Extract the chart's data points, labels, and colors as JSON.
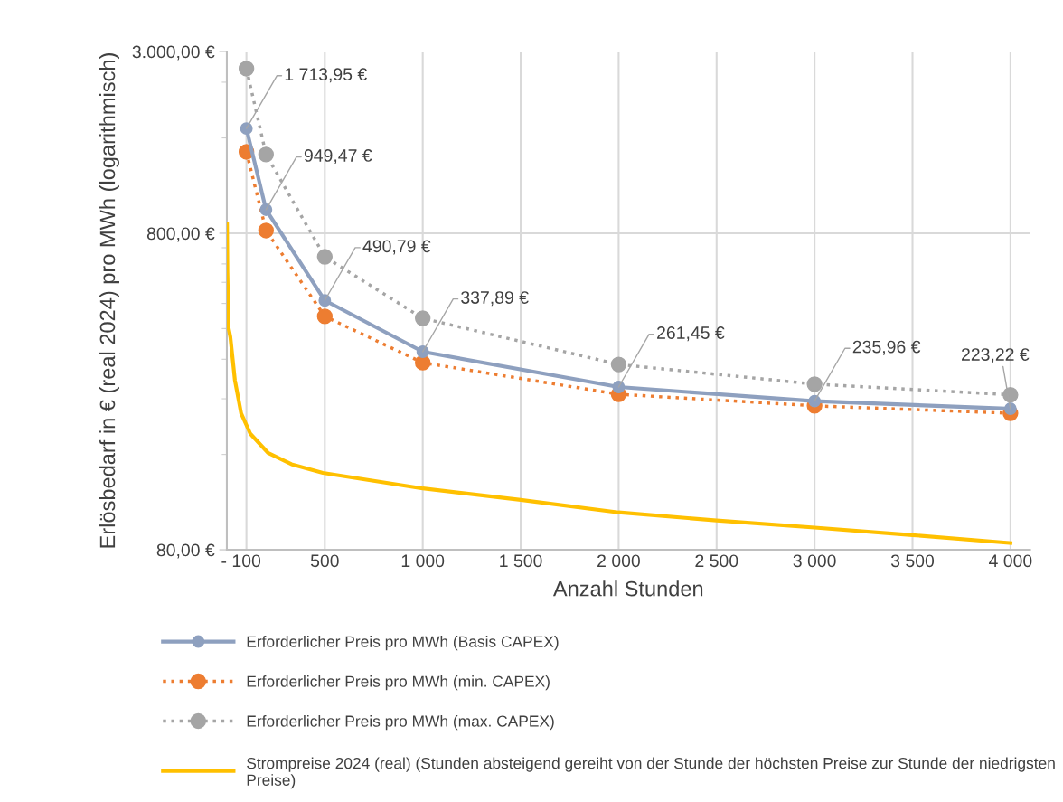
{
  "chart_data": {
    "type": "line",
    "xlabel": "Anzahl Stunden",
    "ylabel": "Erlösbedarf in € (real 2024) pro MWh (logarithmisch)",
    "log": "y",
    "grid": true,
    "legend": "bottom",
    "xlim": [
      0,
      4100
    ],
    "xticks": [
      {
        "value": 0,
        "label": "-"
      },
      100,
      500,
      {
        "value": 1000,
        "label": "1 000"
      },
      {
        "value": 1500,
        "label": "1 500"
      },
      {
        "value": 2000,
        "label": "2 000"
      },
      {
        "value": 2500,
        "label": "2 500"
      },
      {
        "value": 3000,
        "label": "3 000"
      },
      {
        "value": 3500,
        "label": "3 500"
      },
      {
        "value": 4000,
        "label": "4 000"
      }
    ],
    "ylim": [
      80,
      3000
    ],
    "yticks": [
      {
        "value": 80,
        "label": "80,00 €"
      },
      {
        "value": 160,
        "label": null
      },
      {
        "value": 240,
        "label": null
      },
      {
        "value": 320,
        "label": null
      },
      {
        "value": 400,
        "label": null
      },
      {
        "value": 480,
        "label": null
      },
      {
        "value": 560,
        "label": null
      },
      {
        "value": 640,
        "label": null
      },
      {
        "value": 720,
        "label": null
      },
      {
        "value": 800,
        "label": "800,00 €"
      },
      {
        "value": 1600,
        "label": null
      },
      {
        "value": 2400,
        "label": null
      },
      {
        "value": 3000,
        "label": "3.000,00 €"
      }
    ],
    "series": [
      {
        "name": "Erforderlicher Preis pro MWh (Basis CAPEX)",
        "color": "#8ea0bf",
        "marker": "circle",
        "line_style": "solid",
        "x": [
          100,
          200,
          500,
          1000,
          2000,
          3000,
          4000
        ],
        "values": [
          1713.95,
          949.47,
          490.79,
          337.89,
          261.45,
          235.96,
          223.22
        ],
        "value_labels": [
          "1 713,95 €",
          "949,47 €",
          "490,79 €",
          "337,89 €",
          "261,45 €",
          "235,96 €",
          "223,22 €"
        ]
      },
      {
        "name": "Erforderlicher Preis pro MWh (min. CAPEX)",
        "color": "#ed7d31",
        "marker": "circle",
        "line_style": "dotted",
        "x": [
          100,
          200,
          500,
          1000,
          2000,
          3000,
          4000
        ],
        "values": [
          1446,
          816,
          437,
          312,
          248,
          228,
          216
        ]
      },
      {
        "name": "Erforderlicher Preis pro MWh (max. CAPEX)",
        "color": "#a5a5a5",
        "marker": "circle",
        "line_style": "dotted",
        "x": [
          100,
          200,
          500,
          1000,
          2000,
          3000,
          4000
        ],
        "values": [
          2649,
          1419,
          674,
          431,
          308,
          267,
          247
        ]
      },
      {
        "name": "Strompreise 2024 (real) (Stunden absteigend gereiht von der Stunde der höchsten Preise zur Stunde der niedrigsten Preise)",
        "color": "#ffc000",
        "marker": "none",
        "line_style": "solid",
        "x": [
          1,
          3,
          9,
          18,
          41,
          73,
          120,
          210,
          330,
          490,
          1000,
          1500,
          2000,
          2500,
          3000,
          3500,
          4000
        ],
        "values": [
          854,
          600,
          401,
          376,
          275,
          216,
          186,
          162,
          149,
          140,
          125,
          115,
          105,
          99,
          94,
          89,
          84
        ]
      }
    ]
  }
}
